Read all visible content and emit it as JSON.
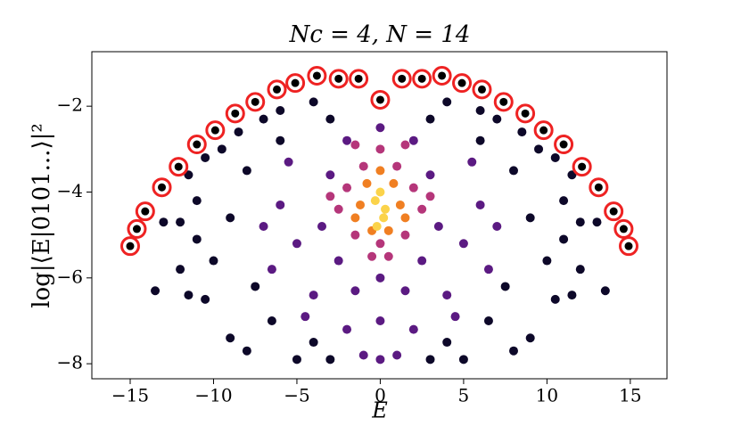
{
  "chart_data": {
    "type": "scatter",
    "title": "Nc = 4, N = 14",
    "xlabel": "E",
    "ylabel": "log|⟨E|0101...⟩|²",
    "xlim": [
      -17.3,
      17.2
    ],
    "ylim": [
      -8.35,
      -0.73
    ],
    "xticks": [
      {
        "value": -15,
        "label": "−15"
      },
      {
        "value": -10,
        "label": "−10"
      },
      {
        "value": -5,
        "label": "−5"
      },
      0,
      5,
      10,
      15
    ],
    "yticks": [
      {
        "value": -8,
        "label": "−8"
      },
      {
        "value": -6,
        "label": "−6"
      },
      {
        "value": -4,
        "label": "−4"
      },
      {
        "value": -2,
        "label": "−2"
      }
    ],
    "grid": false,
    "groups": [
      {
        "color": "#0d0829",
        "x": [
          -11.5,
          -10.5,
          -12,
          -13,
          -11,
          -9.5,
          -8.5,
          -7,
          -6,
          -4,
          -11.5,
          -10.5,
          -9,
          -8,
          -10,
          -12,
          -9,
          -8,
          -6,
          -5,
          -6.5,
          -4,
          -3,
          -11,
          -7.5,
          11.5,
          10.5,
          12,
          13,
          11,
          9.5,
          8.5,
          7,
          6,
          4,
          11.5,
          10.5,
          9,
          8,
          10,
          12,
          9,
          8,
          6,
          5,
          6.5,
          4,
          3,
          11,
          7.5,
          13.5,
          -13.5,
          3,
          -3
        ],
        "y": [
          -3.6,
          -3.2,
          -4.7,
          -4.7,
          -4.2,
          -3.0,
          -2.6,
          -2.3,
          -2.1,
          -1.9,
          -6.4,
          -6.5,
          -7.4,
          -7.7,
          -5.6,
          -5.8,
          -4.6,
          -3.5,
          -2.8,
          -7.9,
          -7.0,
          -7.5,
          -7.9,
          -5.1,
          -6.2,
          -3.6,
          -3.2,
          -4.7,
          -4.7,
          -4.2,
          -3.0,
          -2.6,
          -2.3,
          -2.1,
          -1.9,
          -6.4,
          -6.5,
          -7.4,
          -7.7,
          -5.6,
          -5.8,
          -4.6,
          -3.5,
          -2.8,
          -7.9,
          -7.0,
          -7.5,
          -7.9,
          -5.1,
          -6.2,
          -6.3,
          -6.3,
          -2.3,
          -2.3
        ]
      },
      {
        "color": "#5b1a82",
        "x": [
          -6,
          -5,
          -4,
          -3,
          -2,
          -1,
          -7,
          -5.5,
          -4.5,
          -2.5,
          -3.5,
          -1.5,
          -6.5,
          -2,
          6,
          5,
          4,
          3,
          2,
          1,
          7,
          5.5,
          4.5,
          2.5,
          3.5,
          1.5,
          6.5,
          2,
          0,
          0,
          0,
          0
        ],
        "y": [
          -4.3,
          -5.2,
          -6.4,
          -3.6,
          -7.2,
          -7.8,
          -4.8,
          -3.3,
          -6.9,
          -5.6,
          -4.8,
          -6.3,
          -5.8,
          -2.8,
          -4.3,
          -5.2,
          -6.4,
          -3.6,
          -7.2,
          -7.8,
          -4.8,
          -3.3,
          -6.9,
          -5.6,
          -4.8,
          -6.3,
          -5.8,
          -2.8,
          -7.9,
          -7.0,
          -2.5,
          -6.0
        ]
      },
      {
        "color": "#b5367a",
        "x": [
          -2.5,
          -2,
          -1.5,
          -3,
          -1,
          -0.5,
          -1.5,
          2.5,
          2,
          1.5,
          3,
          1,
          0.5,
          1.5,
          0,
          0
        ],
        "y": [
          -4.4,
          -3.9,
          -5.0,
          -4.1,
          -3.4,
          -5.5,
          -2.9,
          -4.4,
          -3.9,
          -5.0,
          -4.1,
          -3.4,
          -5.5,
          -2.9,
          -5.2,
          -3.0
        ]
      },
      {
        "color": "#f07f22",
        "x": [
          -1.2,
          -0.8,
          -0.5,
          -1.5,
          1.2,
          0.8,
          0.5,
          1.5,
          0
        ],
        "y": [
          -4.3,
          -3.8,
          -4.9,
          -4.6,
          -4.3,
          -3.8,
          -4.9,
          -4.6,
          -3.5
        ]
      },
      {
        "color": "#fbd34a",
        "x": [
          -0.3,
          0.3,
          0,
          0.2,
          -0.2
        ],
        "y": [
          -4.2,
          -4.4,
          -4.0,
          -4.6,
          -4.8
        ]
      }
    ],
    "highlight": {
      "color": "#000000",
      "edgecolor": "#ee2222",
      "x": [
        -15.0,
        -14.6,
        -14.1,
        -13.1,
        -12.1,
        -11.0,
        -9.9,
        -8.7,
        -7.5,
        -6.2,
        -5.1,
        -3.8,
        -2.5,
        -1.3,
        0,
        1.3,
        2.5,
        3.7,
        4.9,
        6.1,
        7.4,
        8.7,
        9.8,
        11.0,
        12.1,
        13.1,
        14.0,
        14.6,
        14.9
      ],
      "y": [
        -5.26,
        -4.86,
        -4.45,
        -3.89,
        -3.41,
        -2.89,
        -2.56,
        -2.17,
        -1.9,
        -1.61,
        -1.46,
        -1.29,
        -1.36,
        -1.36,
        -1.85,
        -1.36,
        -1.36,
        -1.29,
        -1.46,
        -1.61,
        -1.9,
        -2.17,
        -2.56,
        -2.89,
        -3.41,
        -3.89,
        -4.45,
        -4.86,
        -5.26
      ]
    }
  }
}
